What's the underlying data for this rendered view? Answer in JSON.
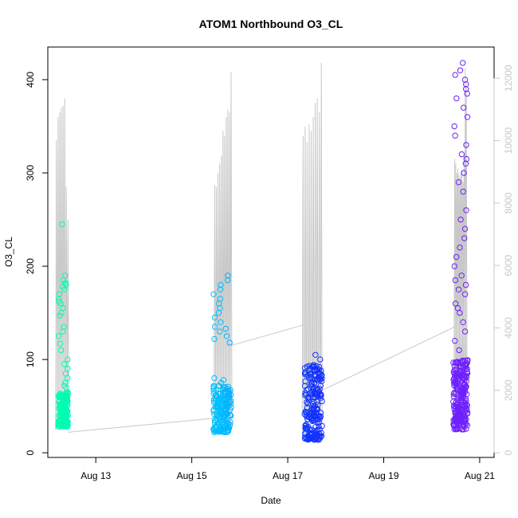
{
  "chart_data": {
    "type": "scatter",
    "title": "ATOM1 Northbound O3_CL",
    "xlabel": "Date",
    "ylabel": "O3_CL",
    "x_ticks": [
      "Aug 13",
      "Aug 15",
      "Aug 17",
      "Aug 19",
      "Aug 21"
    ],
    "x_tick_days": [
      13,
      15,
      17,
      19,
      21
    ],
    "xlim_days": [
      12.0,
      21.3
    ],
    "y_ticks": [
      0,
      100,
      200,
      300,
      400
    ],
    "ylim": [
      -5,
      435
    ],
    "y2_ticks": [
      0,
      2000,
      4000,
      6000,
      8000,
      10000,
      12000
    ],
    "y2lim": [
      -150,
      13000
    ],
    "colors": {
      "axis": "#000000",
      "line": "#c8c8c8",
      "right_axis": "#c8c8c8",
      "grad_start": "#00ffb0",
      "grad_mid": "#00bfff",
      "grad_mid2": "#1030ff",
      "grad_end": "#7020ff"
    },
    "point_groups": [
      {
        "x_start": 12.22,
        "x_end": 12.42,
        "dense_min": 28,
        "dense_max": 65,
        "high_values": [
          100,
          110,
          117,
          125,
          130,
          135,
          147,
          150,
          155,
          160,
          162,
          165,
          170,
          175,
          178,
          180,
          182,
          185,
          190,
          245,
          95,
          90,
          85,
          80,
          75,
          72,
          70
        ]
      },
      {
        "x_start": 15.45,
        "x_end": 15.82,
        "dense_min": 22,
        "dense_max": 72,
        "high_values": [
          118,
          122,
          125,
          130,
          133,
          135,
          140,
          145,
          150,
          155,
          160,
          165,
          170,
          175,
          180,
          185,
          190,
          80,
          75,
          78
        ]
      },
      {
        "x_start": 17.35,
        "x_end": 17.72,
        "dense_min": 14,
        "dense_max": 95,
        "high_values": [
          100,
          105,
          88,
          92,
          85
        ]
      },
      {
        "x_start": 20.45,
        "x_end": 20.75,
        "dense_min": 25,
        "dense_max": 100,
        "high_values": [
          110,
          120,
          130,
          140,
          150,
          155,
          160,
          170,
          175,
          180,
          185,
          190,
          200,
          210,
          220,
          230,
          240,
          250,
          260,
          280,
          290,
          300,
          310,
          315,
          320,
          330,
          340,
          350,
          360,
          370,
          380,
          385,
          390,
          395,
          400,
          405,
          410,
          418
        ]
      }
    ],
    "line_spikes": [
      {
        "x_start": 12.18,
        "x_end": 12.42,
        "peaks": [
          335,
          360,
          365,
          370,
          372,
          380,
          285,
          250
        ]
      },
      {
        "x_start": 15.48,
        "x_end": 15.82,
        "peaks": [
          287,
          285,
          300,
          310,
          318,
          345,
          340,
          360,
          368,
          365,
          408
        ]
      },
      {
        "x_start": 17.32,
        "x_end": 17.7,
        "peaks": [
          340,
          350,
          333,
          352,
          345,
          360,
          375,
          380,
          365,
          418
        ]
      },
      {
        "x_start": 20.48,
        "x_end": 20.72,
        "peaks": [
          315,
          310,
          300,
          305,
          298,
          295,
          300,
          303,
          290,
          320,
          412,
          395
        ]
      }
    ],
    "line_connectors": [
      {
        "from": [
          12.42,
          22
        ],
        "to": [
          15.45,
          37
        ]
      },
      {
        "from": [
          15.82,
          115
        ],
        "to": [
          17.32,
          137
        ]
      },
      {
        "from": [
          17.72,
          67
        ],
        "to": [
          20.48,
          135
        ]
      }
    ]
  }
}
